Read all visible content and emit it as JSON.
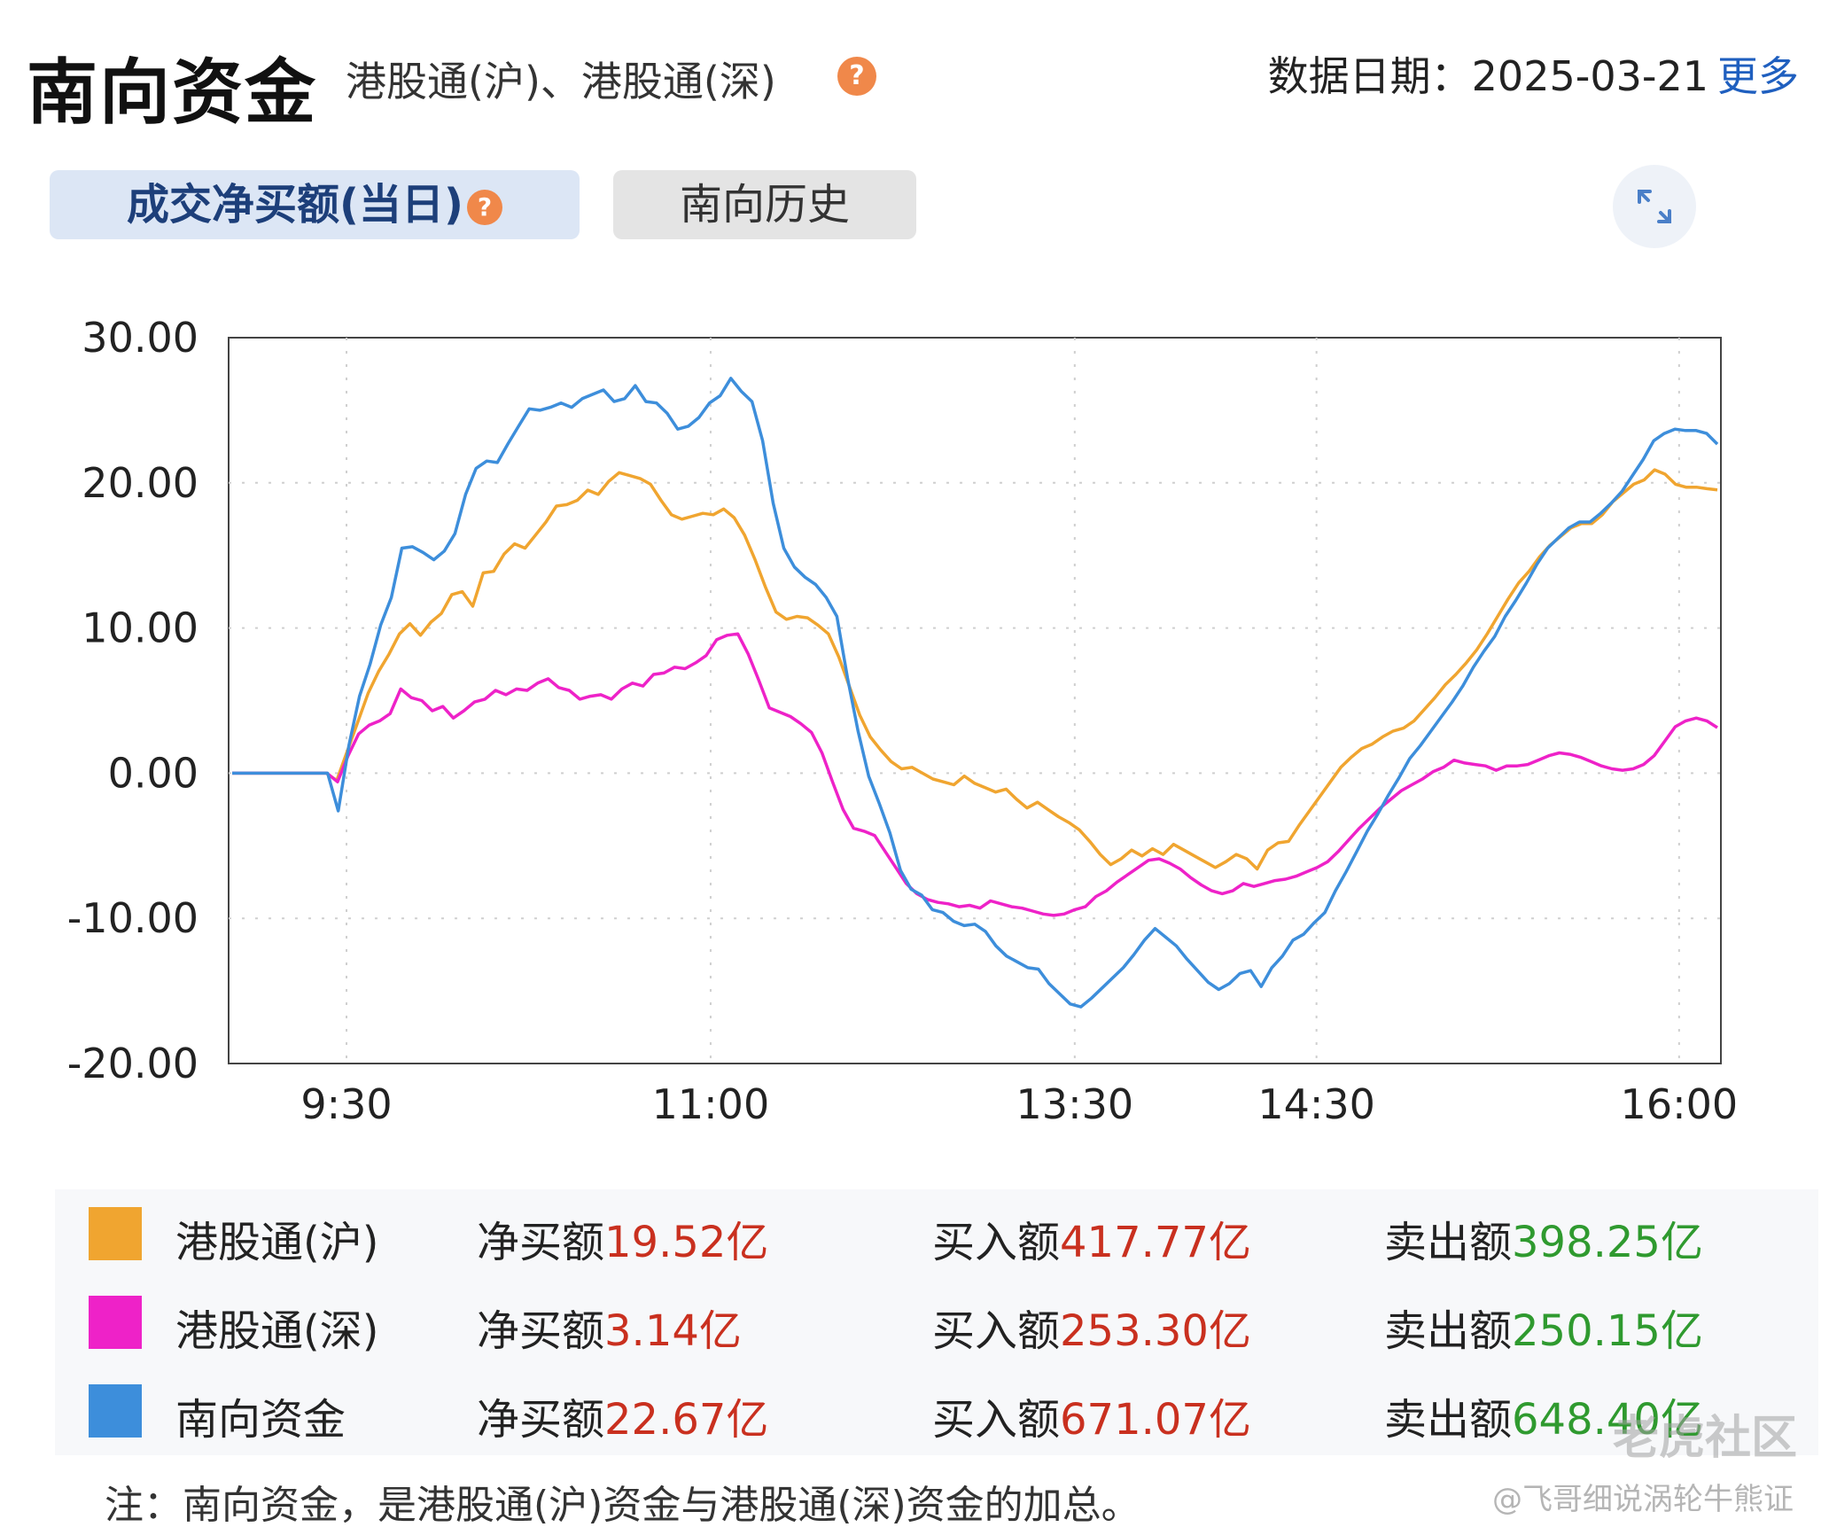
{
  "header": {
    "title": "南向资金",
    "subtitle": "港股通(沪)、港股通(深)",
    "help_glyph": "?",
    "date_label": "数据日期：",
    "date_value": "2025-03-21",
    "more_label": "更多"
  },
  "tabs": [
    {
      "label": "成交净买额(当日)",
      "active": true
    },
    {
      "label": "南向历史",
      "active": false
    }
  ],
  "chart_data": {
    "type": "line",
    "x_ticks": [
      "9:30",
      "11:00",
      "13:30",
      "14:30",
      "16:00"
    ],
    "y_ticks": [
      "30.00",
      "20.00",
      "10.00",
      "0.00",
      "-10.00",
      "-20.00"
    ],
    "ylim": [
      -20,
      30
    ],
    "grid": true,
    "series": [
      {
        "name": "港股通(沪)",
        "color": "#f0a530",
        "values": [
          0,
          0,
          0,
          0,
          0,
          0,
          0,
          0,
          0,
          0,
          -0.5,
          1.5,
          3.5,
          5.5,
          7,
          8.2,
          9.6,
          10.3,
          9.5,
          10.4,
          11,
          12.3,
          12.5,
          11.5,
          13.8,
          13.9,
          15.1,
          15.8,
          15.5,
          16.4,
          17.3,
          18.4,
          18.5,
          18.8,
          19.5,
          19.2,
          20.1,
          20.7,
          20.5,
          20.3,
          19.9,
          18.8,
          17.8,
          17.5,
          17.7,
          17.9,
          17.8,
          18.2,
          17.6,
          16.4,
          14.7,
          12.8,
          11.1,
          10.6,
          10.8,
          10.7,
          10.2,
          9.6,
          8.0,
          6.0,
          4.0,
          2.5,
          1.6,
          0.8,
          0.3,
          0.4,
          0.0,
          -0.4,
          -0.6,
          -0.8,
          -0.2,
          -0.7,
          -1.0,
          -1.3,
          -1.1,
          -1.8,
          -2.4,
          -2.0,
          -2.5,
          -3.0,
          -3.4,
          -3.9,
          -4.7,
          -5.6,
          -6.3,
          -5.9,
          -5.3,
          -5.7,
          -5.2,
          -5.6,
          -4.9,
          -5.3,
          -5.7,
          -6.1,
          -6.5,
          -6.1,
          -5.6,
          -5.9,
          -6.6,
          -5.3,
          -4.8,
          -4.7,
          -3.6,
          -2.6,
          -1.6,
          -0.6,
          0.4,
          1.1,
          1.7,
          2.0,
          2.5,
          2.9,
          3.1,
          3.6,
          4.4,
          5.2,
          6.1,
          6.8,
          7.6,
          8.5,
          9.6,
          10.8,
          12.0,
          13.1,
          13.9,
          14.9,
          15.7,
          16.3,
          16.9,
          17.2,
          17.2,
          17.8,
          18.7,
          19.3,
          19.9,
          20.2,
          20.9,
          20.6,
          19.9,
          19.7,
          19.7,
          19.6,
          19.52
        ]
      },
      {
        "name": "港股通(深)",
        "color": "#ee22c8",
        "values": [
          0,
          0,
          0,
          0,
          0,
          0,
          0,
          0,
          0,
          0,
          -0.6,
          1.2,
          2.7,
          3.3,
          3.6,
          4.1,
          5.8,
          5.2,
          5.0,
          4.3,
          4.6,
          3.8,
          4.3,
          4.9,
          5.1,
          5.7,
          5.4,
          5.8,
          5.7,
          6.2,
          6.5,
          5.9,
          5.7,
          5.1,
          5.3,
          5.4,
          5.1,
          5.8,
          6.2,
          6.0,
          6.8,
          6.9,
          7.3,
          7.2,
          7.6,
          8.1,
          9.2,
          9.5,
          9.6,
          8.2,
          6.4,
          4.5,
          4.2,
          3.9,
          3.4,
          2.8,
          1.4,
          -0.6,
          -2.5,
          -3.8,
          -4.0,
          -4.3,
          -5.4,
          -6.5,
          -7.6,
          -8.3,
          -8.7,
          -8.9,
          -9.0,
          -9.2,
          -9.1,
          -9.3,
          -8.8,
          -9.0,
          -9.2,
          -9.3,
          -9.5,
          -9.7,
          -9.8,
          -9.7,
          -9.4,
          -9.2,
          -8.5,
          -8.1,
          -7.5,
          -7.0,
          -6.5,
          -6.0,
          -5.9,
          -6.2,
          -6.6,
          -7.2,
          -7.7,
          -8.1,
          -8.3,
          -8.1,
          -7.6,
          -7.8,
          -7.6,
          -7.4,
          -7.3,
          -7.1,
          -6.8,
          -6.5,
          -6.1,
          -5.4,
          -4.6,
          -3.8,
          -3.1,
          -2.4,
          -1.8,
          -1.2,
          -0.8,
          -0.4,
          0.1,
          0.4,
          0.9,
          0.7,
          0.6,
          0.5,
          0.2,
          0.5,
          0.5,
          0.6,
          0.9,
          1.2,
          1.4,
          1.3,
          1.1,
          0.8,
          0.5,
          0.3,
          0.2,
          0.3,
          0.6,
          1.2,
          2.2,
          3.2,
          3.6,
          3.8,
          3.6,
          3.14
        ]
      },
      {
        "name": "南向资金",
        "color": "#3d8edb",
        "values": [
          0,
          0,
          0,
          0,
          0,
          0,
          0,
          0,
          0,
          0,
          -2.6,
          1.9,
          5.3,
          7.5,
          10.2,
          12.1,
          15.5,
          15.6,
          15.2,
          14.7,
          15.3,
          16.5,
          19.2,
          21.0,
          21.5,
          21.4,
          22.7,
          23.9,
          25.1,
          25.0,
          25.2,
          25.5,
          25.2,
          25.8,
          26.1,
          26.4,
          25.6,
          25.8,
          26.7,
          25.6,
          25.5,
          24.8,
          23.7,
          23.9,
          24.5,
          25.5,
          26.0,
          27.2,
          26.3,
          25.6,
          22.9,
          18.6,
          15.5,
          14.2,
          13.5,
          13.0,
          12.1,
          10.8,
          6.6,
          2.9,
          -0.2,
          -2.1,
          -4.1,
          -6.7,
          -8.0,
          -8.4,
          -9.4,
          -9.6,
          -10.2,
          -10.5,
          -10.4,
          -10.9,
          -11.9,
          -12.6,
          -13.0,
          -13.4,
          -13.5,
          -14.5,
          -15.2,
          -15.9,
          -16.1,
          -15.5,
          -14.8,
          -14.1,
          -13.4,
          -12.5,
          -11.5,
          -10.7,
          -11.3,
          -11.9,
          -12.8,
          -13.6,
          -14.4,
          -14.9,
          -14.5,
          -13.8,
          -13.6,
          -14.7,
          -13.4,
          -12.6,
          -11.5,
          -11.1,
          -10.3,
          -9.6,
          -8.1,
          -6.8,
          -5.4,
          -4.0,
          -2.8,
          -1.5,
          -0.3,
          1.0,
          1.9,
          2.9,
          3.9,
          4.9,
          6.0,
          7.3,
          8.4,
          9.4,
          10.8,
          11.9,
          13.1,
          14.4,
          15.5,
          16.2,
          16.9,
          17.3,
          17.3,
          17.9,
          18.6,
          19.4,
          20.5,
          21.6,
          22.9,
          23.4,
          23.7,
          23.6,
          23.6,
          23.4,
          22.67
        ]
      }
    ]
  },
  "legend": [
    {
      "name": "港股通(沪)",
      "color": "#f0a530",
      "net_label": "净买额",
      "net_value": "19.52亿",
      "buy_label": "买入额",
      "buy_value": "417.77亿",
      "sell_label": "卖出额",
      "sell_value": "398.25亿"
    },
    {
      "name": "港股通(深)",
      "color": "#ee22c8",
      "net_label": "净买额",
      "net_value": "3.14亿",
      "buy_label": "买入额",
      "buy_value": "253.30亿",
      "sell_label": "卖出额",
      "sell_value": "250.15亿"
    },
    {
      "name": "南向资金",
      "color": "#3d8edb",
      "net_label": "净买额",
      "net_value": "22.67亿",
      "buy_label": "买入额",
      "buy_value": "671.07亿",
      "sell_label": "卖出额",
      "sell_value": "648.40亿"
    }
  ],
  "note": "注：南向资金，是港股通(沪)资金与港股通(深)资金的加总。",
  "watermark": "老虎社区",
  "watermark_author": "@飞哥细说涡轮牛熊证"
}
